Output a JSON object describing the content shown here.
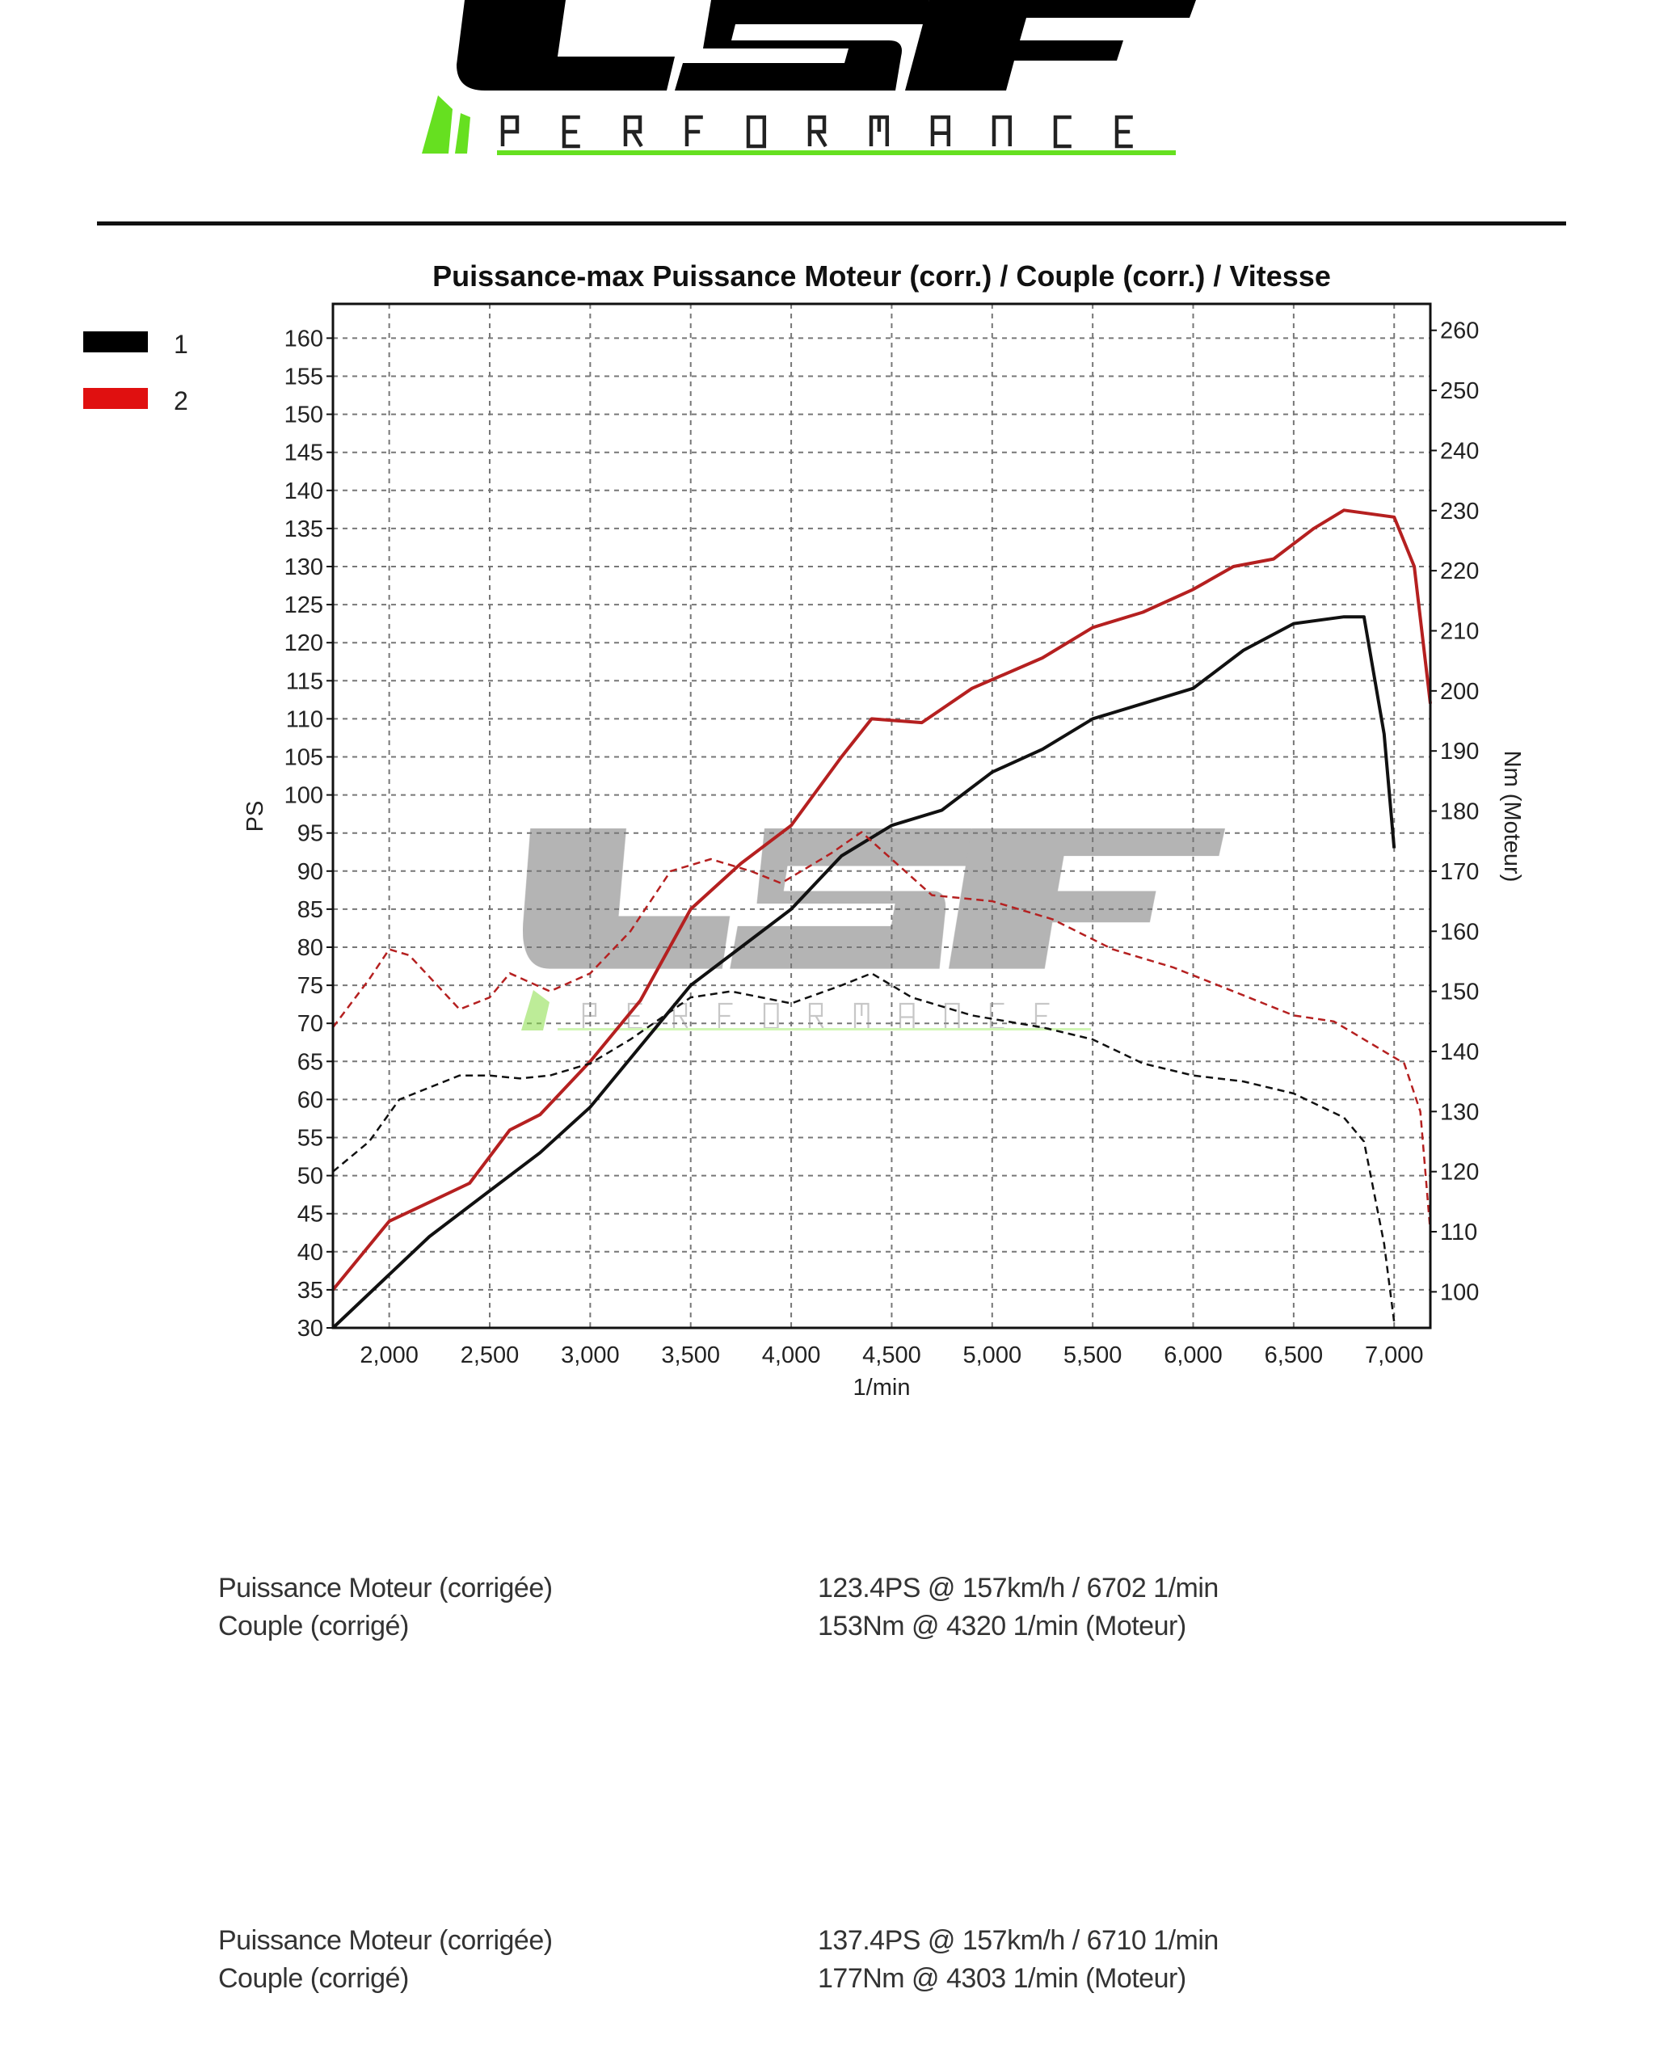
{
  "logo": {
    "text": "LSF",
    "subtext": "PERFORMANCE",
    "green": "#66e020"
  },
  "chart_data": {
    "type": "line",
    "title": "Puissance-max Puissance Moteur (corr.) / Couple (corr.) / Vitesse",
    "xlabel": "1/min",
    "ylabel": "PS",
    "y2label": "Nm (Moteur)",
    "xlim": [
      1720,
      7180
    ],
    "ylim": [
      30,
      164.5
    ],
    "y2lim": [
      94,
      264.4
    ],
    "xticks": [
      "2,000",
      "2,500",
      "3,000",
      "3,500",
      "4,000",
      "4,500",
      "5,000",
      "5,500",
      "6,000",
      "6,500",
      "7,000"
    ],
    "xtick_values": [
      2000,
      2500,
      3000,
      3500,
      4000,
      4500,
      5000,
      5500,
      6000,
      6500,
      7000
    ],
    "yticks": [
      30,
      35,
      40,
      45,
      50,
      55,
      60,
      65,
      70,
      75,
      80,
      85,
      90,
      95,
      100,
      105,
      110,
      115,
      120,
      125,
      130,
      135,
      140,
      145,
      150,
      155,
      160
    ],
    "y2ticks": [
      100,
      110,
      120,
      130,
      140,
      150,
      160,
      170,
      180,
      190,
      200,
      210,
      220,
      230,
      240,
      250,
      260
    ],
    "grid": true,
    "legend": {
      "placement": "top-left",
      "entries": [
        {
          "label": "1",
          "color": "#000000"
        },
        {
          "label": "2",
          "color": "#e01010"
        }
      ]
    },
    "series": [
      {
        "name": "1",
        "quantity": "power",
        "axis": "left",
        "style": "solid",
        "color": "#111111",
        "x": [
          1720,
          2000,
          2200,
          2500,
          2750,
          3000,
          3250,
          3500,
          3750,
          4000,
          4250,
          4500,
          4750,
          5000,
          5250,
          5500,
          5750,
          6000,
          6250,
          6500,
          6750,
          6850,
          6950,
          7000
        ],
        "y": [
          30,
          37,
          42,
          48,
          53,
          59,
          67,
          75,
          80,
          85,
          92,
          96,
          98,
          103,
          106,
          110,
          112,
          114,
          119,
          122.5,
          123.4,
          123.4,
          108,
          93
        ]
      },
      {
        "name": "2",
        "quantity": "power",
        "axis": "left",
        "style": "solid",
        "color": "#b52020",
        "x": [
          1720,
          2000,
          2200,
          2400,
          2600,
          2750,
          3000,
          3250,
          3500,
          3750,
          4000,
          4250,
          4400,
          4650,
          4900,
          5250,
          5500,
          5750,
          6000,
          6200,
          6400,
          6600,
          6750,
          7000,
          7100,
          7180
        ],
        "y": [
          35,
          44,
          46.5,
          49,
          56,
          58,
          65,
          73,
          85,
          91,
          96,
          105,
          110,
          109.5,
          114,
          118,
          122,
          124,
          127,
          130,
          131,
          135,
          137.4,
          136.5,
          130,
          112
        ]
      },
      {
        "name": "1",
        "quantity": "torque",
        "axis": "right",
        "style": "dashed",
        "color": "#111111",
        "x": [
          1720,
          1900,
          2050,
          2200,
          2350,
          2500,
          2650,
          2800,
          3000,
          3200,
          3500,
          3700,
          4000,
          4250,
          4400,
          4600,
          4900,
          5250,
          5500,
          5750,
          6000,
          6250,
          6500,
          6750,
          6850,
          6950,
          7000
        ],
        "y": [
          120,
          125,
          132,
          134,
          136,
          136,
          135.5,
          136,
          138,
          142,
          149,
          150,
          148,
          151,
          153,
          149,
          146,
          144,
          142,
          138,
          136,
          135,
          133,
          129,
          125,
          108,
          95
        ]
      },
      {
        "name": "2",
        "quantity": "torque",
        "axis": "right",
        "style": "dashed",
        "color": "#b52020",
        "x": [
          1720,
          1900,
          2000,
          2100,
          2350,
          2500,
          2600,
          2800,
          3000,
          3200,
          3400,
          3600,
          3800,
          3950,
          4200,
          4350,
          4500,
          4700,
          5000,
          5300,
          5600,
          5900,
          6200,
          6500,
          6700,
          6900,
          7050,
          7130,
          7180
        ],
        "y": [
          144,
          152,
          157,
          156,
          147,
          149,
          153,
          150,
          153,
          160,
          170,
          172,
          170,
          168,
          173,
          176.5,
          172,
          166,
          165,
          162,
          157,
          154,
          150,
          146,
          145,
          141,
          138,
          130,
          110
        ]
      }
    ]
  },
  "results": [
    {
      "rows": [
        {
          "label": "Puissance Moteur (corrigée)",
          "value": "123.4PS @ 157km/h / 6702 1/min"
        },
        {
          "label": "Couple (corrigé)",
          "value": "153Nm @ 4320 1/min (Moteur)"
        }
      ]
    },
    {
      "rows": [
        {
          "label": "Puissance Moteur (corrigée)",
          "value": "137.4PS @ 157km/h / 6710 1/min"
        },
        {
          "label": "Couple (corrigé)",
          "value": "177Nm @ 4303 1/min (Moteur)"
        }
      ]
    }
  ]
}
